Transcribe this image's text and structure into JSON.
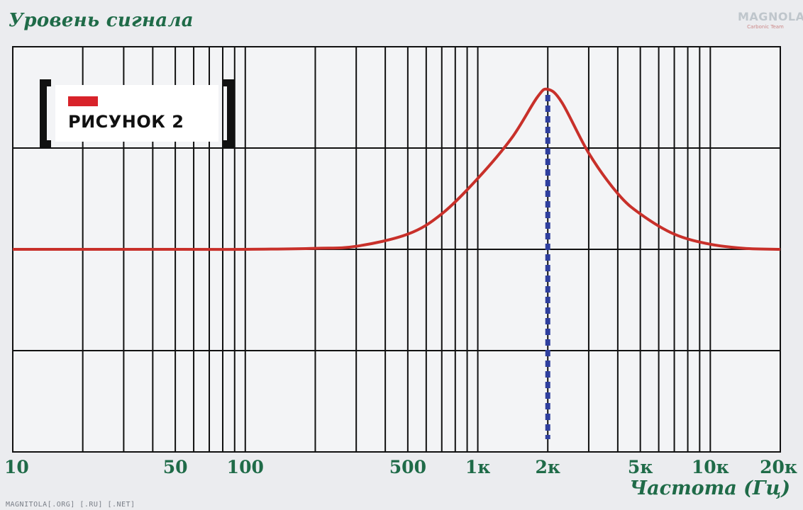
{
  "chart_data": {
    "type": "line",
    "title": "",
    "ylabel": "Уровень сигнала",
    "xlabel": "Частота (Гц)",
    "x_scale": "log",
    "xlim": [
      10,
      20000
    ],
    "x_ticks": [
      {
        "value": 10,
        "label": "10"
      },
      {
        "value": 50,
        "label": "50"
      },
      {
        "value": 100,
        "label": "100"
      },
      {
        "value": 500,
        "label": "500"
      },
      {
        "value": 1000,
        "label": "1к"
      },
      {
        "value": 2000,
        "label": "2к"
      },
      {
        "value": 5000,
        "label": "5к"
      },
      {
        "value": 10000,
        "label": "10к"
      },
      {
        "value": 20000,
        "label": "20к"
      }
    ],
    "grid": true,
    "ylim": [
      0,
      4
    ],
    "series": [
      {
        "color": "#c8302a",
        "x": [
          10,
          50,
          100,
          200,
          300,
          500,
          700,
          1000,
          1400,
          1800,
          2000,
          2300,
          3000,
          4000,
          5000,
          7000,
          10000,
          14000,
          20000
        ],
        "y": [
          2.0,
          2.0,
          2.0,
          2.01,
          2.03,
          2.15,
          2.35,
          2.7,
          3.1,
          3.5,
          3.58,
          3.45,
          2.95,
          2.55,
          2.35,
          2.15,
          2.05,
          2.01,
          2.0
        ]
      }
    ],
    "annotations": [
      {
        "type": "vertical-dashed-line",
        "x": 2000,
        "color": "#2f3f9e"
      }
    ],
    "figure_label": "РИСУНОК 2"
  },
  "watermark": "MAGNITOLA[.ORG] [.RU] [.NET]",
  "logo": {
    "text": "MAGNOLA",
    "subtext": "Carbonic Team"
  }
}
